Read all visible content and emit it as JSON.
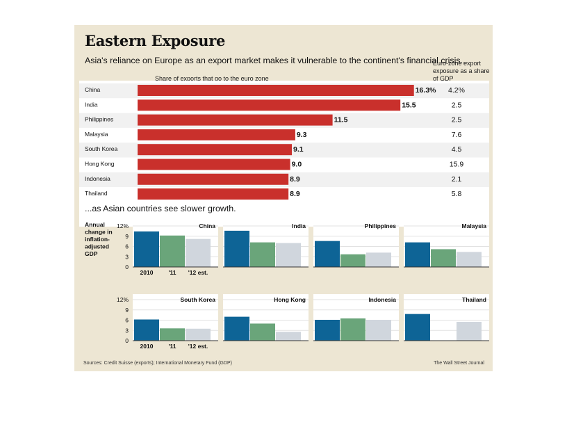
{
  "title": "Eastern Exposure",
  "subtitle": "Asia's reliance on Europe as an export market makes it vulnerable to the continent's financial crisis...",
  "exports_header": "Share of exports that go to the euro zone",
  "gdp_header": "Euro-zone export exposure as a share of GDP",
  "subtitle2": "...as Asian countries see slower growth.",
  "growth_ylabel": "Annual change in inflation-adjusted GDP",
  "source": "Sources: Credit Suisse (exports); International Monetary Fund (GDP)",
  "credit": "The Wall Street Journal",
  "colors": {
    "bar": "#c9302c",
    "y2010": "#0e6496",
    "y2011": "#6aa57a",
    "y2012": "#d0d6dd",
    "card": "#ede6d3"
  },
  "chart_data": [
    {
      "type": "bar",
      "orientation": "horizontal",
      "title": "Share of exports that go to the euro zone",
      "categories": [
        "China",
        "India",
        "Philippines",
        "Malaysia",
        "South Korea",
        "Hong Kong",
        "Indonesia",
        "Thailand"
      ],
      "values": [
        16.3,
        15.5,
        11.5,
        9.3,
        9.1,
        9.0,
        8.9,
        8.9
      ],
      "value_labels": [
        "16.3%",
        "15.5",
        "11.5",
        "9.3",
        "9.1",
        "9.0",
        "8.9",
        "8.9"
      ],
      "secondary_column": {
        "title": "Euro-zone export exposure as a share of GDP",
        "values_labels": [
          "4.2%",
          "2.5",
          "2.5",
          "7.6",
          "4.5",
          "15.9",
          "2.1",
          "5.8"
        ]
      }
    },
    {
      "type": "bar",
      "title": "...as Asian countries see slower growth.",
      "ylabel": "Annual change in inflation-adjusted GDP",
      "ylim": [
        0,
        12
      ],
      "yticks": [
        "0",
        "3",
        "6",
        "9",
        "12%"
      ],
      "categories": [
        "2010",
        "'11",
        "'12 est."
      ],
      "panels": [
        {
          "name": "China",
          "values": [
            10.4,
            9.2,
            8.2
          ]
        },
        {
          "name": "India",
          "values": [
            10.6,
            7.2,
            7.0
          ]
        },
        {
          "name": "Philippines",
          "values": [
            7.6,
            3.7,
            4.2
          ]
        },
        {
          "name": "Malaysia",
          "values": [
            7.2,
            5.2,
            4.4
          ]
        },
        {
          "name": "South Korea",
          "values": [
            6.2,
            3.6,
            3.5
          ]
        },
        {
          "name": "Hong Kong",
          "values": [
            7.0,
            5.0,
            2.6
          ]
        },
        {
          "name": "Indonesia",
          "values": [
            6.1,
            6.5,
            6.1
          ]
        },
        {
          "name": "Thailand",
          "values": [
            7.8,
            0.1,
            5.5
          ]
        }
      ]
    }
  ]
}
